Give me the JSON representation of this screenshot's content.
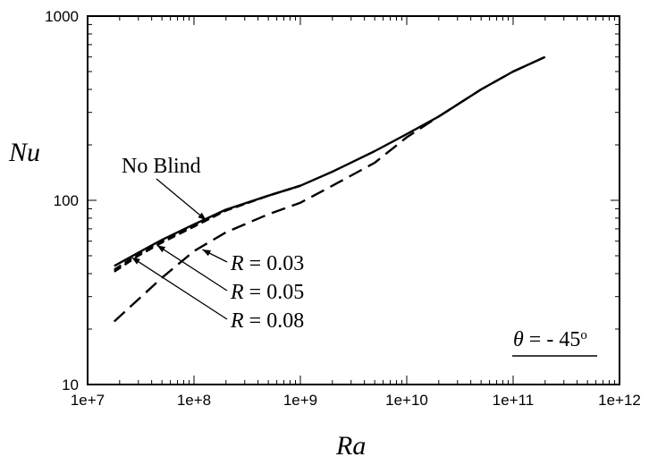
{
  "chart_data": {
    "type": "line",
    "xlabel": "Ra",
    "ylabel": "Nu",
    "xscale": "log",
    "yscale": "log",
    "xlim": [
      10000000.0,
      1000000000000.0
    ],
    "ylim": [
      10,
      1000
    ],
    "xticks": [
      "1e+7",
      "1e+8",
      "1e+9",
      "1e+10",
      "1e+11",
      "1e+12"
    ],
    "yticks": [
      "10",
      "100",
      "1000"
    ],
    "grid": false,
    "series": [
      {
        "name": "No Blind",
        "style": "solid",
        "x": [
          17800000.0,
          30000000.0,
          50000000.0,
          100000000.0,
          200000000.0,
          500000000.0,
          1000000000.0,
          2000000000.0,
          5000000000.0,
          10000000000.0,
          20000000000.0,
          50000000000.0,
          100000000000.0,
          200000000000.0
        ],
        "y": [
          44,
          52,
          61,
          74,
          89,
          106,
          120,
          143,
          185,
          229,
          285,
          400,
          500,
          600
        ]
      },
      {
        "name": "R = 0.03",
        "style": "long-dash",
        "x": [
          17800000.0,
          30000000.0,
          50000000.0,
          100000000.0,
          200000000.0,
          500000000.0,
          1000000000.0,
          2000000000.0,
          5000000000.0,
          10000000000.0,
          20000000000.0,
          50000000000.0,
          100000000000.0,
          200000000000.0
        ],
        "y": [
          22,
          29,
          38,
          53,
          67,
          84,
          97,
          120,
          160,
          220,
          285,
          400,
          500,
          600
        ]
      },
      {
        "name": "R = 0.05",
        "style": "dash",
        "x": [
          17800000.0,
          30000000.0,
          50000000.0,
          100000000.0,
          200000000.0,
          500000000.0,
          1000000000.0
        ],
        "y": [
          41,
          50,
          59,
          72,
          88,
          106,
          120
        ]
      },
      {
        "name": "R = 0.08",
        "style": "dash",
        "x": [
          17800000.0,
          30000000.0,
          50000000.0,
          100000000.0,
          200000000.0,
          500000000.0,
          1000000000.0
        ],
        "y": [
          42,
          51,
          60,
          73,
          88,
          106,
          120
        ]
      }
    ],
    "annotations": [
      {
        "text": "No Blind",
        "target_x": 130000000.0,
        "target_y": 78
      },
      {
        "text_italic": "R",
        "text": " = 0.03",
        "target_x": 120000000.0,
        "target_y": 54
      },
      {
        "text_italic": "R",
        "text": " = 0.05",
        "target_x": 45000000.0,
        "target_y": 57
      },
      {
        "text_italic": "R",
        "text": " = 0.08",
        "target_x": 26000000.0,
        "target_y": 49
      }
    ],
    "inset_label": {
      "italic": "θ",
      "text": " = - 45",
      "sup": "o"
    }
  }
}
